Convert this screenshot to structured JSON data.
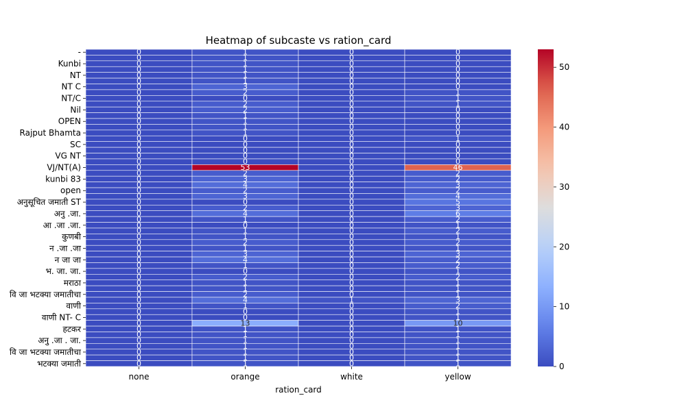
{
  "chart_data": {
    "type": "heatmap",
    "title": "Heatmap of subcaste vs ration_card",
    "xlabel": "ration_card",
    "ylabel": "",
    "columns": [
      "none",
      "orange",
      "white",
      "yellow"
    ],
    "row_tick_labels": [
      "-",
      "Kunbi",
      "NT",
      "NT C",
      "NT/C",
      "Nil",
      "OPEN",
      "Rajput Bhamta",
      "SC",
      "VG NT",
      "VJ/NT(A)",
      "kunbi 83",
      "open",
      "अनुसूचित जमाती ST",
      "अनु .जा.",
      "अ‍ा .जा .जा.",
      "कुणबी",
      "न .जा .जा",
      "न जा जा",
      "भ. ज‍ा. जा.",
      "मराठा",
      "वि जा भटक्या जमातीचा",
      "वाणी",
      "वा‍णी NT- C",
      "हटकर",
      "अनु .जा . जा.",
      "वि जा भटक्या जमातीचा",
      "भटक्या जमाती"
    ],
    "row_count": 55,
    "color_scale": {
      "min": 0,
      "max": 53,
      "colormap": "coolwarm",
      "ticks": [
        0,
        10,
        20,
        30,
        40,
        50
      ]
    },
    "values": [
      [
        0,
        1,
        0,
        0
      ],
      [
        0,
        1,
        0,
        0
      ],
      [
        0,
        1,
        0,
        0
      ],
      [
        0,
        1,
        0,
        0
      ],
      [
        0,
        1,
        0,
        0
      ],
      [
        0,
        1,
        0,
        0
      ],
      [
        0,
        3,
        0,
        0
      ],
      [
        0,
        2,
        0,
        1
      ],
      [
        0,
        0,
        0,
        1
      ],
      [
        0,
        2,
        0,
        1
      ],
      [
        0,
        2,
        0,
        0
      ],
      [
        0,
        1,
        0,
        0
      ],
      [
        0,
        1,
        0,
        0
      ],
      [
        0,
        1,
        0,
        0
      ],
      [
        0,
        1,
        0,
        0
      ],
      [
        0,
        0,
        0,
        1
      ],
      [
        0,
        0,
        0,
        0
      ],
      [
        0,
        0,
        0,
        0
      ],
      [
        0,
        0,
        0,
        0
      ],
      [
        0,
        0,
        0,
        0
      ],
      [
        0,
        53,
        0,
        46
      ],
      [
        0,
        2,
        0,
        2
      ],
      [
        0,
        3,
        0,
        2
      ],
      [
        0,
        4,
        0,
        3
      ],
      [
        0,
        2,
        0,
        2
      ],
      [
        0,
        3,
        0,
        4
      ],
      [
        0,
        0,
        0,
        5
      ],
      [
        0,
        2,
        0,
        3
      ],
      [
        0,
        4,
        0,
        6
      ],
      [
        0,
        1,
        0,
        2
      ],
      [
        0,
        0,
        0,
        1
      ],
      [
        0,
        1,
        0,
        2
      ],
      [
        0,
        1,
        0,
        1
      ],
      [
        0,
        2,
        0,
        2
      ],
      [
        0,
        1,
        0,
        1
      ],
      [
        0,
        3,
        0,
        3
      ],
      [
        0,
        4,
        0,
        2
      ],
      [
        0,
        1,
        0,
        2
      ],
      [
        0,
        0,
        0,
        1
      ],
      [
        0,
        2,
        0,
        2
      ],
      [
        0,
        1,
        0,
        1
      ],
      [
        0,
        1,
        0,
        1
      ],
      [
        0,
        2,
        0,
        1
      ],
      [
        0,
        4,
        1,
        3
      ],
      [
        0,
        1,
        0,
        2
      ],
      [
        0,
        0,
        0,
        1
      ],
      [
        0,
        0,
        0,
        1
      ],
      [
        0,
        13,
        0,
        10
      ],
      [
        0,
        1,
        0,
        1
      ],
      [
        0,
        1,
        0,
        1
      ],
      [
        0,
        1,
        0,
        1
      ],
      [
        0,
        1,
        0,
        1
      ],
      [
        0,
        1,
        0,
        1
      ],
      [
        0,
        1,
        0,
        1
      ],
      [
        0,
        1,
        0,
        1
      ]
    ]
  }
}
